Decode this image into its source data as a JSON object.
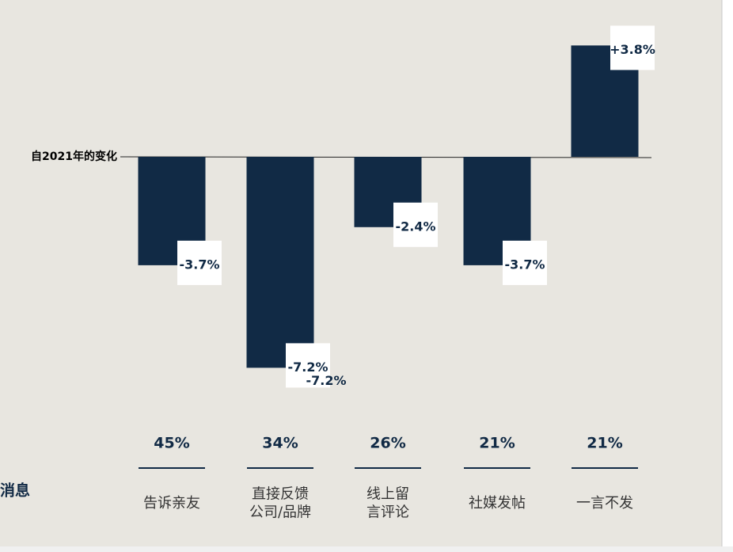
{
  "chart_data": {
    "type": "bar",
    "baseline_label": "自2021年的变化",
    "side_label": "消息",
    "categories": [
      [
        "告诉亲友"
      ],
      [
        "直接反馈",
        "公司/品牌"
      ],
      [
        "线上留",
        "言评论"
      ],
      [
        "社媒发帖"
      ],
      [
        "一言不发"
      ]
    ],
    "values": [
      -3.7,
      -7.2,
      -2.4,
      -3.7,
      3.8
    ],
    "value_labels": [
      "-3.7%",
      "-7.2%",
      "-2.4%",
      "-3.7%",
      "+3.8%"
    ],
    "color": "#112a45",
    "shares": [
      45,
      34,
      26,
      21,
      21
    ],
    "share_labels": [
      "45%",
      "34%",
      "26%",
      "21%",
      "21%"
    ]
  }
}
